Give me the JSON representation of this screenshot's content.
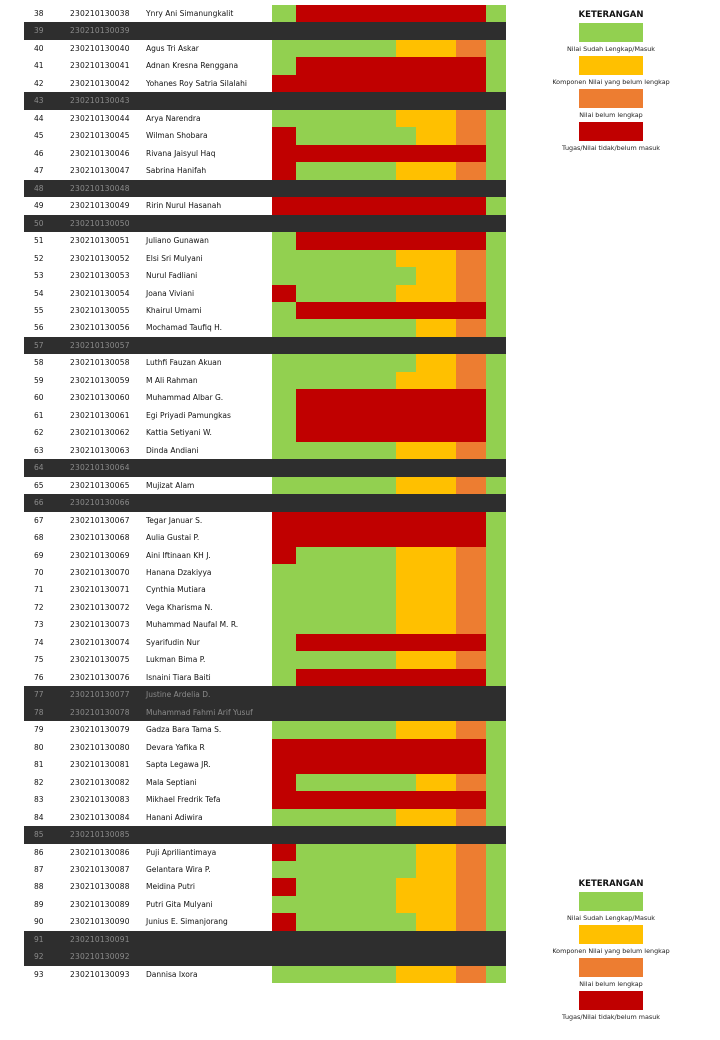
{
  "colors": {
    "G": "#92d050",
    "Y": "#ffc000",
    "O": "#ed7d31",
    "R": "#c00000",
    "dark": "#2e2e2e"
  },
  "legend": {
    "title": "KETERANGAN",
    "items": [
      {
        "color": "G",
        "label": "Nilai Sudah Lengkap/Masuk"
      },
      {
        "color": "Y",
        "label": "Komponen Nilai yang belum lengkap"
      },
      {
        "color": "O",
        "label": "Nilai belum lengkap"
      },
      {
        "color": "R",
        "label": "Tugas/Nilai tidak/belum masuk"
      }
    ]
  },
  "rows": [
    {
      "no": "38",
      "nim": "230210130038",
      "name": "Ynry Ani Simanungkalit",
      "status": "GRRRRRRRRRRG"
    },
    {
      "no": "39",
      "nim": "230210130039",
      "name": "",
      "status": "dark"
    },
    {
      "no": "40",
      "nim": "230210130040",
      "name": "Agus Tri Askar",
      "status": "GGGGGGYYYOOG"
    },
    {
      "no": "41",
      "nim": "230210130041",
      "name": "Adnan Kresna Renggana",
      "status": "GRRRRRRRRRRG"
    },
    {
      "no": "42",
      "nim": "230210130042",
      "name": "Yohanes Roy Satria Silalahi",
      "status": "RRRRRRRRRRRG"
    },
    {
      "no": "43",
      "nim": "230210130043",
      "name": "",
      "status": "dark"
    },
    {
      "no": "44",
      "nim": "230210130044",
      "name": "Arya Narendra",
      "status": "GGGGGGYYYOOG"
    },
    {
      "no": "45",
      "nim": "230210130045",
      "name": "Wilman Shobara",
      "status": "RGGGGGGYYOOG"
    },
    {
      "no": "46",
      "nim": "230210130046",
      "name": "Rivana Jaisyul Haq",
      "status": "RRRRRRRRRRRG"
    },
    {
      "no": "47",
      "nim": "230210130047",
      "name": "Sabrina Hanifah",
      "status": "RGGGGGYYYOOG"
    },
    {
      "no": "48",
      "nim": "230210130048",
      "name": "",
      "status": "dark"
    },
    {
      "no": "49",
      "nim": "230210130049",
      "name": "Ririn Nurul Hasanah",
      "status": "RRRRRRRRRRRG"
    },
    {
      "no": "50",
      "nim": "230210130050",
      "name": "",
      "status": "dark"
    },
    {
      "no": "51",
      "nim": "230210130051",
      "name": "Juliano Gunawan",
      "status": "GRRRRRRRRRRG"
    },
    {
      "no": "52",
      "nim": "230210130052",
      "name": "Elsi Sri Mulyani",
      "status": "GGGGGGYYYOOG"
    },
    {
      "no": "53",
      "nim": "230210130053",
      "name": "Nurul Fadliani",
      "status": "GGGGGGGYYOOG"
    },
    {
      "no": "54",
      "nim": "230210130054",
      "name": "Joana Viviani",
      "status": "RGGGGGYYYOOG"
    },
    {
      "no": "55",
      "nim": "230210130055",
      "name": "Khairul Umami",
      "status": "GRRRRRRRRRRG"
    },
    {
      "no": "56",
      "nim": "230210130056",
      "name": "Mochamad Taufiq H.",
      "status": "GGGGGGGYYOOG"
    },
    {
      "no": "57",
      "nim": "230210130057",
      "name": "",
      "status": "dark"
    },
    {
      "no": "58",
      "nim": "230210130058",
      "name": "Luthfi Fauzan Akuan",
      "status": "GGGGGGGYYOOG"
    },
    {
      "no": "59",
      "nim": "230210130059",
      "name": "M Ali Rahman",
      "status": "GGGGGGYYYOOG"
    },
    {
      "no": "60",
      "nim": "230210130060",
      "name": "Muhammad Albar G.",
      "status": "GRRRRRRRRRRG"
    },
    {
      "no": "61",
      "nim": "230210130061",
      "name": "Egi Priyadi Pamungkas",
      "status": "GRRRRRRRRRRG"
    },
    {
      "no": "62",
      "nim": "230210130062",
      "name": "Kattia Setiyani W.",
      "status": "GRRRRRRRRRRG"
    },
    {
      "no": "63",
      "nim": "230210130063",
      "name": "Dinda Andiani",
      "status": "GGGGGGYYYOOG"
    },
    {
      "no": "64",
      "nim": "230210130064",
      "name": "",
      "status": "dark"
    },
    {
      "no": "65",
      "nim": "230210130065",
      "name": "Mujizat Alam",
      "status": "GGGGGGYYYOOG"
    },
    {
      "no": "66",
      "nim": "230210130066",
      "name": "",
      "status": "dark"
    },
    {
      "no": "67",
      "nim": "230210130067",
      "name": "Tegar Januar S.",
      "status": "RRRRRRRRRRRG"
    },
    {
      "no": "68",
      "nim": "230210130068",
      "name": "Aulia Gustai P.",
      "status": "RRRRRRRRRRRG"
    },
    {
      "no": "69",
      "nim": "230210130069",
      "name": "Aini Iftinaan KH J.",
      "status": "RGGGGGYYYOOG"
    },
    {
      "no": "70",
      "nim": "230210130070",
      "name": "Hanana Dzakiyya",
      "status": "GGGGGGYYYOOG"
    },
    {
      "no": "71",
      "nim": "230210130071",
      "name": "Cynthia Mutiara",
      "status": "GGGGGGYYYOOG"
    },
    {
      "no": "72",
      "nim": "230210130072",
      "name": "Vega Kharisma N.",
      "status": "GGGGGGYYYOOG"
    },
    {
      "no": "73",
      "nim": "230210130073",
      "name": "Muhammad Naufal M. R.",
      "status": "GGGGGGYYYOOG"
    },
    {
      "no": "74",
      "nim": "230210130074",
      "name": "Syarifudin Nur",
      "status": "GRRRRRRRRRRG"
    },
    {
      "no": "75",
      "nim": "230210130075",
      "name": "Lukman Bima P.",
      "status": "GGGGGGYYYOOG"
    },
    {
      "no": "76",
      "nim": "230210130076",
      "name": "Isnaini Tiara Baiti",
      "status": "GRRRRRRRRRRG"
    },
    {
      "no": "77",
      "nim": "230210130077",
      "name": "Justine Ardelia D.",
      "status": "dark"
    },
    {
      "no": "78",
      "nim": "230210130078",
      "name": "Muhammad Fahmi Arif Yusuf",
      "status": "dark"
    },
    {
      "no": "79",
      "nim": "230210130079",
      "name": "Gadza Bara Tama S.",
      "status": "GGGGGGYYYOOG"
    },
    {
      "no": "80",
      "nim": "230210130080",
      "name": "Devara Yafika R",
      "status": "RRRRRRRRRRRG"
    },
    {
      "no": "81",
      "nim": "230210130081",
      "name": "Sapta Legawa JR.",
      "status": "RRRRRRRRRRRG"
    },
    {
      "no": "82",
      "nim": "230210130082",
      "name": "Mala Septiani",
      "status": "RGGGGGGYYOOG"
    },
    {
      "no": "83",
      "nim": "230210130083",
      "name": "Mikhael Fredrik Tefa",
      "status": "RRRRRRRRRRRG"
    },
    {
      "no": "84",
      "nim": "230210130084",
      "name": "Hanani Adiwira",
      "status": "GGGGGGYYYOOG"
    },
    {
      "no": "85",
      "nim": "230210130085",
      "name": "",
      "status": "dark"
    },
    {
      "no": "86",
      "nim": "230210130086",
      "name": "Puji Apriliantimaya",
      "status": "RGGGGGGYYOOG"
    },
    {
      "no": "87",
      "nim": "230210130087",
      "name": "Gelantara Wira P.",
      "status": "GGGGGGGYYOOG"
    },
    {
      "no": "88",
      "nim": "230210130088",
      "name": "Meidina Putri",
      "status": "RGGGGGYYYOOG"
    },
    {
      "no": "89",
      "nim": "230210130089",
      "name": "Putri Gita Mulyani",
      "status": "GGGGGGYYYOOG"
    },
    {
      "no": "90",
      "nim": "230210130090",
      "name": "Junius E. Simanjorang",
      "status": "RGGGGGGYYOOG"
    },
    {
      "no": "91",
      "nim": "230210130091",
      "name": "",
      "status": "dark"
    },
    {
      "no": "92",
      "nim": "230210130092",
      "name": "",
      "status": "dark"
    },
    {
      "no": "93",
      "nim": "230210130093",
      "name": "Dannisa Ixora",
      "status": "GGGGGGYYYOOG"
    }
  ]
}
